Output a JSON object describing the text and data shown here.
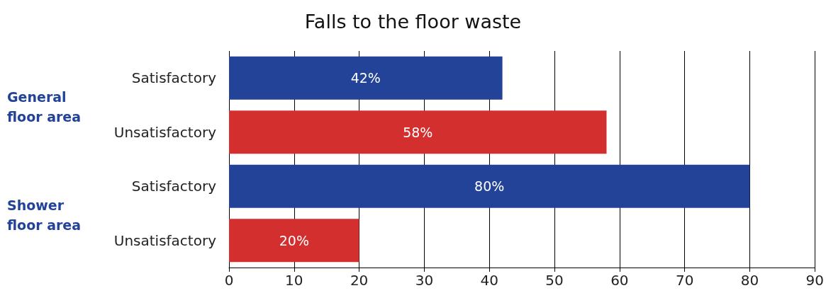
{
  "chart_data": {
    "type": "bar",
    "orientation": "horizontal",
    "title": "Falls to the floor waste",
    "categories": [
      "Satisfactory",
      "Unsatisfactory",
      "Satisfactory",
      "Unsatisfactory"
    ],
    "values": [
      42,
      58,
      80,
      20
    ],
    "colors": [
      "#224397",
      "#d32f2f",
      "#224397",
      "#d32f2f"
    ],
    "value_labels": [
      "42%",
      "58%",
      "80%",
      "20%"
    ],
    "annotations": [
      "General floor area",
      "Shower floor area"
    ],
    "xlim": [
      0,
      90
    ],
    "xticks": [
      0,
      10,
      20,
      30,
      40,
      50,
      60,
      70,
      80,
      90
    ],
    "grid": "x"
  }
}
